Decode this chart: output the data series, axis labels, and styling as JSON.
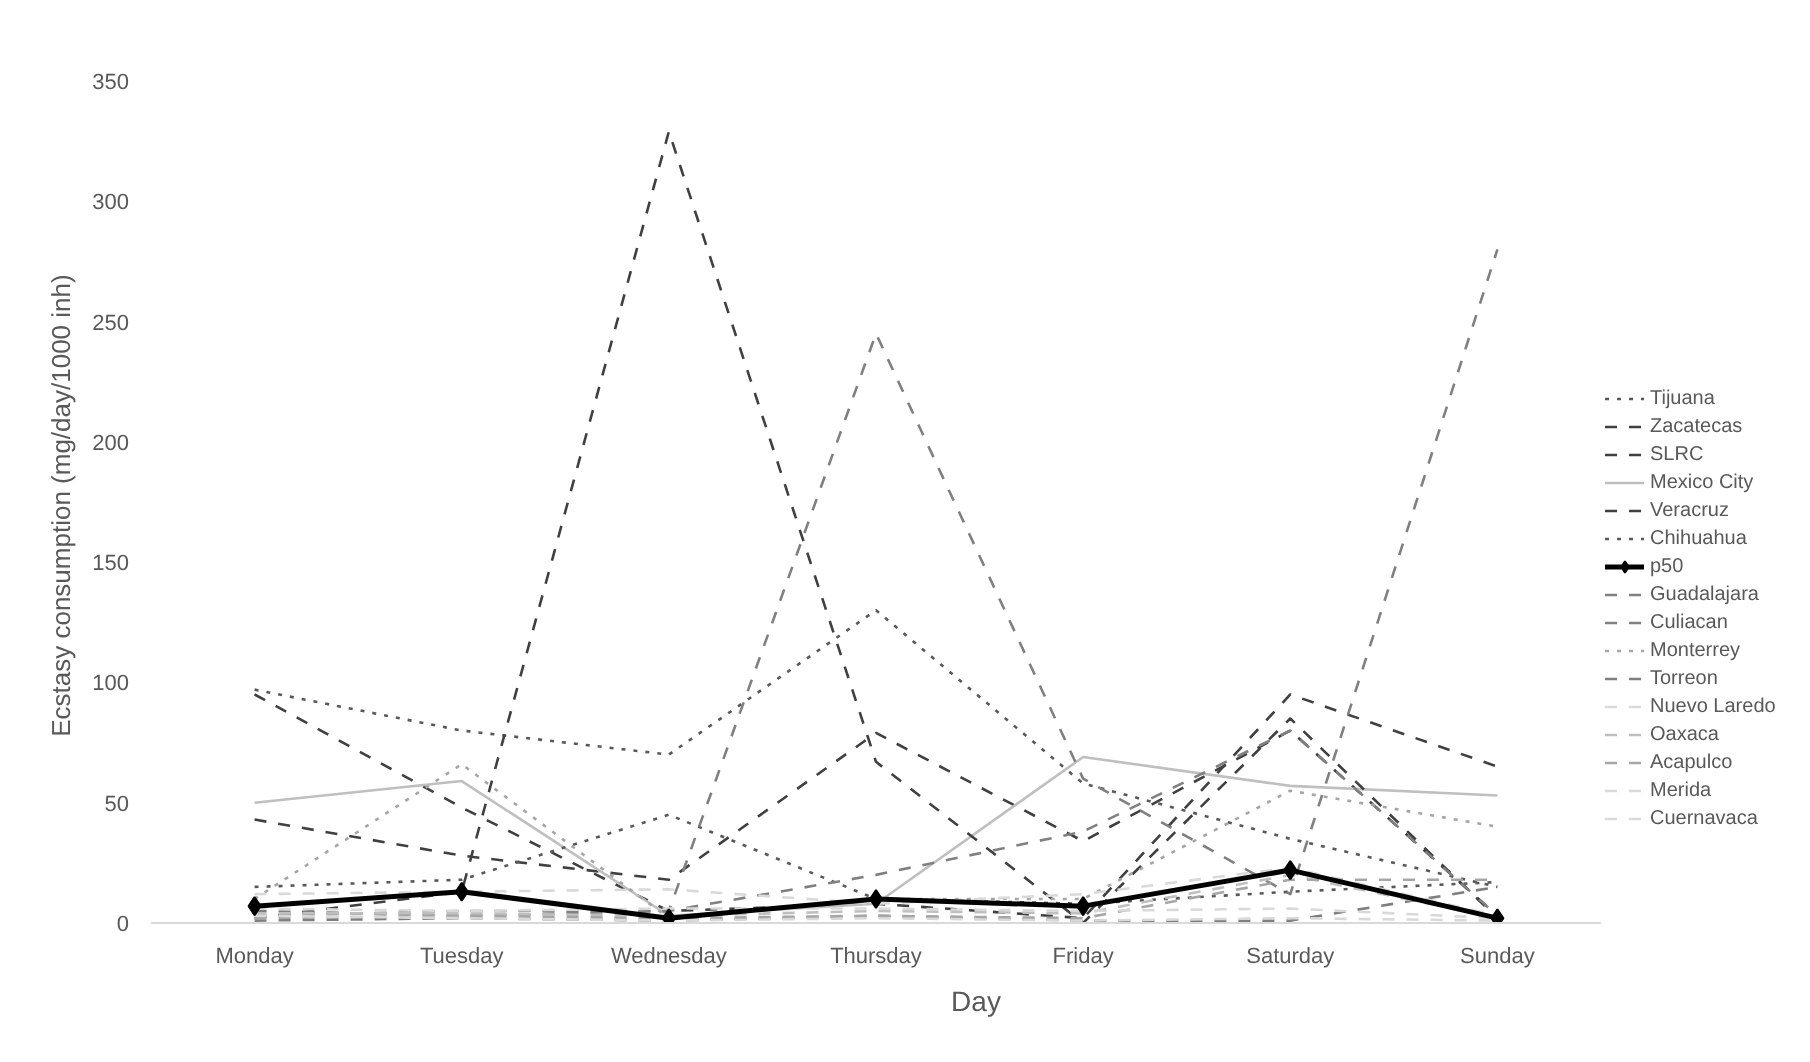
{
  "chart_data": {
    "type": "line",
    "xlabel": "Day",
    "ylabel": "Ecstasy consumption  (mg/day/1000 inh)",
    "categories": [
      "Monday",
      "Tuesday",
      "Wednesday",
      "Thursday",
      "Friday",
      "Saturday",
      "Sunday"
    ],
    "ylim": [
      0,
      350
    ],
    "yticks": [
      0,
      50,
      100,
      150,
      200,
      250,
      300,
      350
    ],
    "grid": false,
    "legend": "right",
    "marker": "none",
    "series": [
      {
        "name": "Tijuana",
        "color": "#595959",
        "line_style": "dotted",
        "values": [
          97,
          80,
          70,
          130,
          58,
          35,
          15
        ]
      },
      {
        "name": "Zacatecas",
        "color": "#404040",
        "line_style": "dashed",
        "values": [
          95,
          48,
          5,
          8,
          2,
          95,
          65
        ]
      },
      {
        "name": "SLRC",
        "color": "#404040",
        "line_style": "dashed",
        "values": [
          43,
          28,
          18,
          79,
          34,
          80,
          3
        ]
      },
      {
        "name": "Mexico City",
        "color": "#bfbfbf",
        "line_style": "solid",
        "values": [
          50,
          59,
          3,
          8,
          69,
          57,
          53
        ]
      },
      {
        "name": "Veracruz",
        "color": "#404040",
        "line_style": "dashed",
        "values": [
          2,
          13,
          329,
          67,
          0,
          85,
          2
        ]
      },
      {
        "name": "Chihuahua",
        "color": "#595959",
        "line_style": "dotted",
        "values": [
          15,
          18,
          45,
          10,
          8,
          13,
          17
        ]
      },
      {
        "name": "p50",
        "color": "#000000",
        "line_style": "solid",
        "marker": "diamond",
        "values": [
          7,
          13,
          2,
          10,
          7,
          22,
          2
        ]
      },
      {
        "name": "Guadalajara",
        "color": "#808080",
        "line_style": "dashed",
        "values": [
          5,
          3,
          5,
          245,
          60,
          12,
          280
        ]
      },
      {
        "name": "Culiacan",
        "color": "#808080",
        "line_style": "dashed",
        "values": [
          3,
          5,
          5,
          20,
          38,
          80,
          3
        ]
      },
      {
        "name": "Monterrey",
        "color": "#a6a6a6",
        "line_style": "dotted",
        "values": [
          10,
          66,
          2,
          10,
          10,
          55,
          40
        ]
      },
      {
        "name": "Torreon",
        "color": "#7f7f7f",
        "line_style": "dashed",
        "values": [
          1,
          2,
          1,
          3,
          1,
          1,
          15
        ]
      },
      {
        "name": "Nuevo Laredo",
        "color": "#d9d9d9",
        "line_style": "dashed",
        "values": [
          12,
          13,
          14,
          8,
          12,
          23,
          3
        ]
      },
      {
        "name": "Oaxaca",
        "color": "#bfbfbf",
        "line_style": "dashed",
        "values": [
          4,
          4,
          3,
          5,
          4,
          20,
          2
        ]
      },
      {
        "name": "Acapulco",
        "color": "#a6a6a6",
        "line_style": "dashed",
        "values": [
          2,
          3,
          2,
          3,
          2,
          18,
          18
        ]
      },
      {
        "name": "Merida",
        "color": "#d9d9d9",
        "line_style": "dashed",
        "values": [
          6,
          5,
          6,
          6,
          5,
          6,
          2
        ]
      },
      {
        "name": "Cuernavaca",
        "color": "#d9d9d9",
        "line_style": "dashed",
        "values": [
          3,
          2,
          1,
          2,
          1,
          2,
          1
        ]
      }
    ]
  }
}
